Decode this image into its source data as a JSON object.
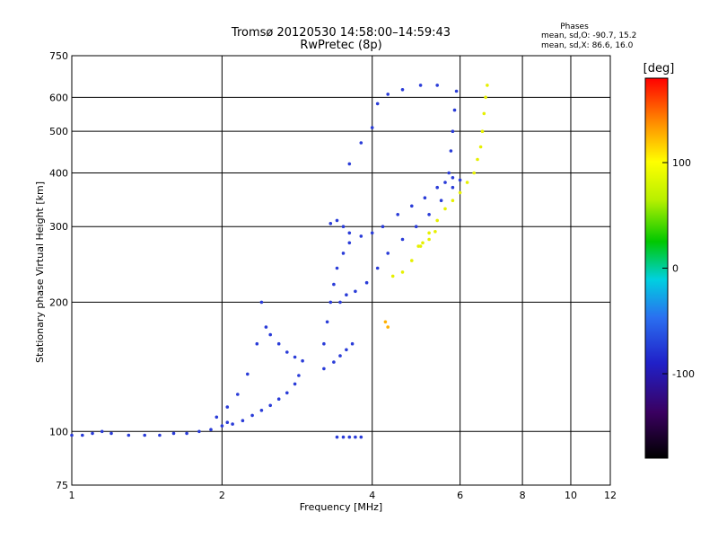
{
  "chart_data": {
    "type": "scatter",
    "title": "Tromsø 20120530 14:58:00–14:59:43",
    "subtitle": "RwPretec (8p)",
    "xlabel": "Frequency [MHz]",
    "ylabel": "Stationary phase Virtual Height [km]",
    "x_scale": "log",
    "y_scale": "log",
    "xlim": [
      1,
      12
    ],
    "ylim": [
      75,
      750
    ],
    "x_ticks": [
      "1",
      "2",
      "4",
      "6",
      "8",
      "10",
      "12"
    ],
    "y_ticks": [
      "75",
      "100",
      "200",
      "300",
      "400",
      "500",
      "600",
      "750"
    ],
    "grid": true,
    "phase_stats": {
      "heading": "Phases",
      "line_o": "mean, sd,O: -90.7, 15.2",
      "line_x": "mean, sd,X:  86.6, 16.0"
    },
    "colorbar": {
      "label": "[deg]",
      "range": [
        -180,
        180
      ],
      "ticks": [
        "100",
        "0",
        "-100"
      ]
    },
    "traces": [
      {
        "phase": -100,
        "points": [
          [
            1.0,
            98
          ],
          [
            1.05,
            98
          ],
          [
            1.1,
            99
          ],
          [
            1.15,
            100
          ],
          [
            1.2,
            99
          ],
          [
            1.3,
            98
          ],
          [
            1.4,
            98
          ],
          [
            1.5,
            98
          ],
          [
            1.6,
            99
          ],
          [
            1.7,
            99
          ],
          [
            1.8,
            100
          ],
          [
            1.9,
            101
          ],
          [
            2.0,
            103
          ],
          [
            2.05,
            105
          ],
          [
            2.1,
            104
          ],
          [
            2.2,
            106
          ],
          [
            2.3,
            109
          ],
          [
            2.4,
            112
          ],
          [
            2.5,
            115
          ],
          [
            2.6,
            119
          ],
          [
            2.7,
            123
          ],
          [
            2.8,
            129
          ],
          [
            2.85,
            135
          ]
        ]
      },
      {
        "phase": -100,
        "points": [
          [
            1.95,
            108
          ],
          [
            2.05,
            114
          ],
          [
            2.15,
            122
          ],
          [
            2.25,
            136
          ],
          [
            2.35,
            160
          ],
          [
            2.4,
            200
          ],
          [
            2.45,
            175
          ],
          [
            2.5,
            168
          ],
          [
            2.6,
            160
          ],
          [
            2.7,
            153
          ],
          [
            2.8,
            149
          ],
          [
            2.9,
            146
          ]
        ]
      },
      {
        "phase": -100,
        "points": [
          [
            3.2,
            160
          ],
          [
            3.25,
            180
          ],
          [
            3.3,
            200
          ],
          [
            3.35,
            220
          ],
          [
            3.4,
            240
          ],
          [
            3.5,
            260
          ],
          [
            3.6,
            275
          ],
          [
            3.8,
            285
          ],
          [
            4.0,
            290
          ],
          [
            4.2,
            300
          ],
          [
            4.5,
            320
          ],
          [
            4.8,
            335
          ],
          [
            5.1,
            350
          ],
          [
            5.4,
            370
          ],
          [
            5.6,
            380
          ],
          [
            5.8,
            390
          ]
        ]
      },
      {
        "phase": -100,
        "points": [
          [
            3.45,
            200
          ],
          [
            3.55,
            208
          ],
          [
            3.7,
            212
          ],
          [
            3.9,
            222
          ],
          [
            4.1,
            240
          ],
          [
            4.3,
            260
          ],
          [
            4.6,
            280
          ],
          [
            4.9,
            300
          ],
          [
            5.2,
            320
          ],
          [
            5.5,
            345
          ],
          [
            5.8,
            370
          ],
          [
            6.0,
            385
          ]
        ]
      },
      {
        "phase": -100,
        "points": [
          [
            3.2,
            140
          ],
          [
            3.35,
            145
          ],
          [
            3.45,
            150
          ],
          [
            3.55,
            155
          ],
          [
            3.65,
            160
          ]
        ]
      },
      {
        "phase": -100,
        "points": [
          [
            3.3,
            305
          ],
          [
            3.4,
            310
          ],
          [
            3.5,
            300
          ],
          [
            3.6,
            290
          ]
        ]
      },
      {
        "phase": -100,
        "points": [
          [
            3.6,
            420
          ],
          [
            3.8,
            470
          ],
          [
            4.0,
            510
          ],
          [
            4.1,
            580
          ],
          [
            4.3,
            610
          ],
          [
            4.6,
            625
          ],
          [
            5.0,
            640
          ],
          [
            5.4,
            640
          ]
        ]
      },
      {
        "phase": -100,
        "points": [
          [
            5.7,
            400
          ],
          [
            5.75,
            450
          ],
          [
            5.8,
            500
          ],
          [
            5.85,
            560
          ],
          [
            5.9,
            620
          ]
        ]
      },
      {
        "phase": -100,
        "points": [
          [
            3.4,
            97
          ],
          [
            3.5,
            97
          ],
          [
            3.6,
            97
          ],
          [
            3.7,
            97
          ],
          [
            3.8,
            97
          ]
        ]
      },
      {
        "phase": 100,
        "points": [
          [
            4.4,
            230
          ],
          [
            4.6,
            235
          ],
          [
            4.8,
            250
          ],
          [
            5.0,
            270
          ],
          [
            5.2,
            290
          ],
          [
            5.4,
            310
          ],
          [
            5.6,
            330
          ],
          [
            5.8,
            345
          ],
          [
            6.0,
            360
          ],
          [
            6.2,
            380
          ],
          [
            6.4,
            400
          ],
          [
            6.5,
            430
          ],
          [
            6.6,
            460
          ],
          [
            6.65,
            500
          ],
          [
            6.7,
            550
          ],
          [
            6.75,
            600
          ],
          [
            6.8,
            640
          ]
        ]
      },
      {
        "phase": 100,
        "points": [
          [
            4.95,
            270
          ],
          [
            5.05,
            275
          ],
          [
            5.2,
            280
          ],
          [
            5.35,
            292
          ]
        ]
      },
      {
        "phase": 120,
        "points": [
          [
            4.25,
            180
          ],
          [
            4.3,
            175
          ]
        ]
      }
    ]
  }
}
